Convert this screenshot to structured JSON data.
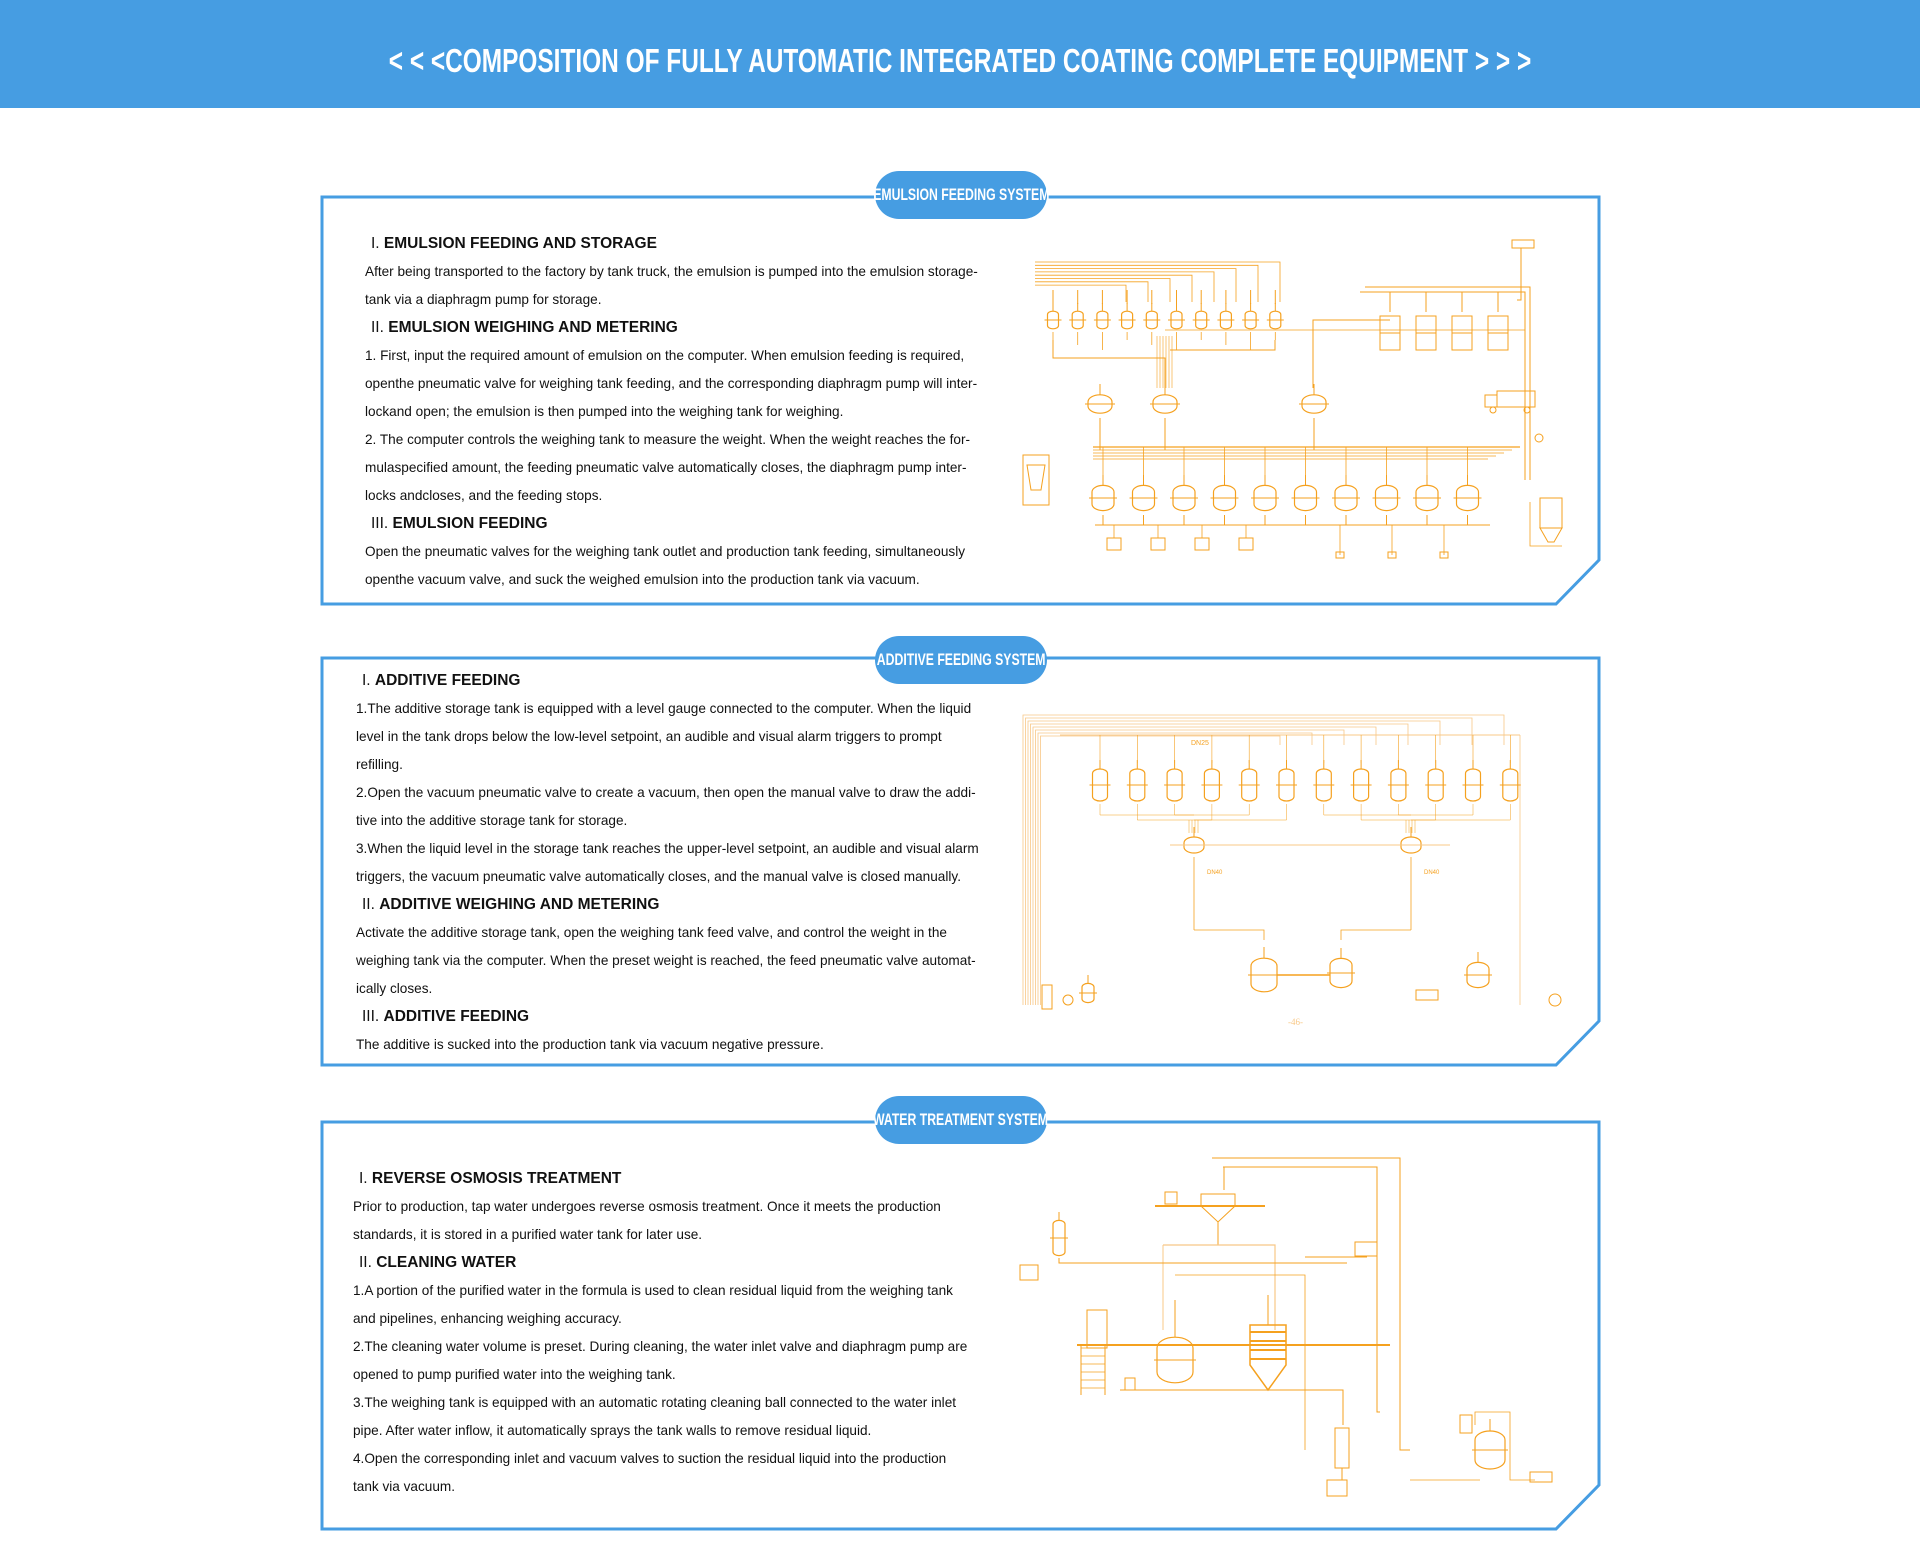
{
  "header": {
    "title": "< < <COMPOSITION OF FULLY AUTOMATIC INTEGRATED COATING COMPLETE EQUIPMENT > > >"
  },
  "colors": {
    "brand_blue": "#469de2",
    "diagram_orange": "#f5a11f",
    "diagram_orange_light": "#f8c887"
  },
  "sections": [
    {
      "badge": "EMULSION FEEDING SYSTEM",
      "blocks": [
        {
          "num": "I. ",
          "title": "EMULSION FEEDING AND STORAGE",
          "paragraphs": [
            [
              "After being transported to the factory by tank truck, the emulsion is pumped into the emulsion storage-",
              "tank via a diaphragm pump for storage."
            ]
          ]
        },
        {
          "num": "II. ",
          "title": "EMULSION WEIGHING AND METERING",
          "paragraphs": [
            [
              "1. First, input the required amount of emulsion on the computer. When emulsion feeding is required,",
              "openthe pneumatic valve for weighing tank feeding, and the corresponding diaphragm pump will inter-",
              "lockand open; the emulsion is then pumped into the weighing tank for weighing."
            ],
            [
              "2. The computer controls the weighing tank to measure the weight. When the weight reaches the for-",
              "mulaspecified amount, the feeding pneumatic valve automatically closes, the diaphragm pump inter-",
              "locks andcloses, and the feeding stops."
            ]
          ]
        },
        {
          "num": "III. ",
          "title": "EMULSION FEEDING",
          "paragraphs": [
            [
              "Open the pneumatic valves for the weighing tank outlet and production tank feeding, simultaneously",
              "openthe vacuum valve, and suck the weighed emulsion into the production tank via vacuum."
            ]
          ]
        }
      ]
    },
    {
      "badge": "ADDITIVE FEEDING SYSTEM",
      "blocks": [
        {
          "num": "I. ",
          "title": "ADDITIVE FEEDING",
          "paragraphs": [
            [
              "1.The additive storage tank is equipped with a level gauge connected to the computer. When the liquid",
              "level in the tank drops below the low-level setpoint, an audible and visual alarm triggers to prompt",
              "refilling."
            ],
            [
              "2.Open the vacuum pneumatic valve to create a vacuum, then open the manual valve to draw the addi-",
              "tive into the additive storage tank for storage."
            ],
            [
              "3.When the liquid level in the storage tank reaches the upper-level setpoint, an audible and visual alarm",
              "triggers, the vacuum pneumatic valve automatically closes, and the manual valve is closed manually."
            ]
          ]
        },
        {
          "num": "II. ",
          "title": "ADDITIVE WEIGHING AND METERING",
          "paragraphs": [
            [
              "Activate the additive storage tank, open the weighing tank feed valve, and control the weight in the",
              "weighing tank via the computer. When the preset weight is reached, the feed pneumatic valve automat-",
              "ically closes."
            ]
          ]
        },
        {
          "num": "III. ",
          "title": "ADDITIVE FEEDING",
          "paragraphs": [
            [
              "The additive is sucked into the production tank via vacuum negative pressure."
            ]
          ]
        }
      ],
      "diagram_labels": {
        "dn25": "DN25",
        "dn40_left": "DN40",
        "dn40_right": "DN40",
        "page": "-46-"
      }
    },
    {
      "badge": "WATER TREATMENT SYSTEM",
      "blocks": [
        {
          "num": "I. ",
          "title": "REVERSE OSMOSIS TREATMENT",
          "paragraphs": [
            [
              "Prior to production, tap water undergoes reverse osmosis treatment. Once it meets the production",
              "standards, it is stored in a purified water tank for later use."
            ]
          ]
        },
        {
          "num": "II. ",
          "title": "CLEANING WATER",
          "paragraphs": [
            [
              "1.A portion of the purified water in the formula is used to clean residual liquid from the weighing tank",
              "and pipelines, enhancing weighing accuracy."
            ],
            [
              "2.The cleaning water volume is preset. During cleaning, the water inlet valve and diaphragm pump are",
              "opened to pump purified water into the weighing tank."
            ],
            [
              "3.The weighing tank is equipped with an automatic rotating cleaning ball connected to the water inlet",
              "pipe. After water inflow, it automatically sprays the tank walls to remove residual liquid."
            ],
            [
              "4.Open the corresponding inlet and vacuum valves to suction the residual liquid into the production",
              "tank via vacuum."
            ]
          ]
        }
      ]
    }
  ]
}
